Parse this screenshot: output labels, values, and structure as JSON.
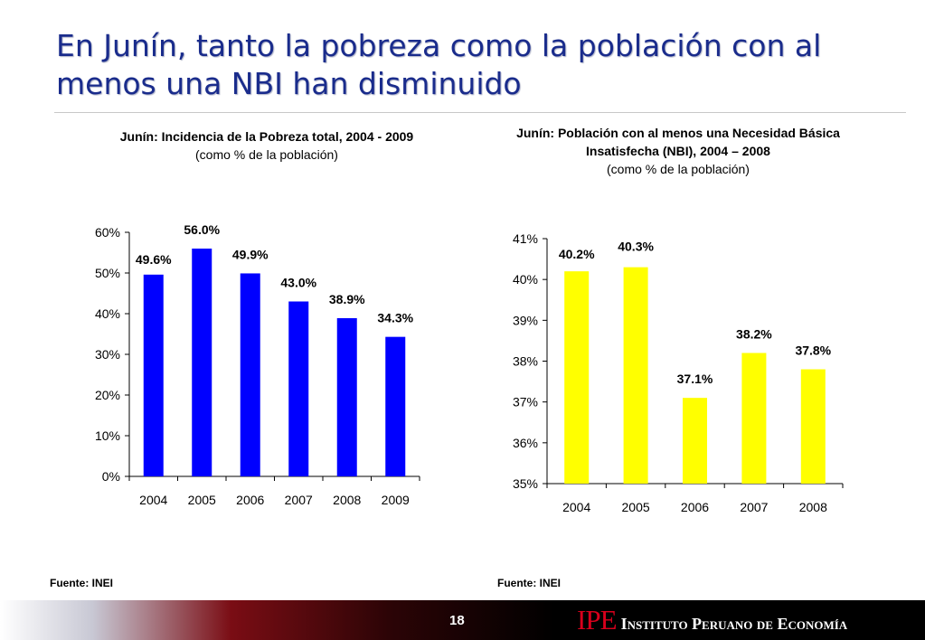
{
  "slide": {
    "title": "En Junín, tanto la pobreza como la población con al menos una NBI han disminuido",
    "page_number": "18",
    "logo_mark": "IPE",
    "logo_name": "Instituto Peruano de Economía"
  },
  "chart_data": [
    {
      "type": "bar",
      "title": "Junín: Incidencia de la Pobreza total, 2004 - 2009",
      "subtitle": "(como % de la población)",
      "categories": [
        "2004",
        "2005",
        "2006",
        "2007",
        "2008",
        "2009"
      ],
      "values": [
        49.6,
        56.0,
        49.9,
        43.0,
        38.9,
        34.3
      ],
      "value_labels": [
        "49.6%",
        "56.0%",
        "49.9%",
        "43.0%",
        "38.9%",
        "34.3%"
      ],
      "ylim": [
        0,
        60
      ],
      "yticks": [
        0,
        10,
        20,
        30,
        40,
        50,
        60
      ],
      "ytick_labels": [
        "0%",
        "10%",
        "20%",
        "30%",
        "40%",
        "50%",
        "60%"
      ],
      "color": "#0000ff",
      "grid": false,
      "legend": "none",
      "source": "Fuente: INEI"
    },
    {
      "type": "bar",
      "title": "Junín: Población con al menos una Necesidad Básica Insatisfecha (NBI), 2004 – 2008",
      "subtitle": "(como % de la población)",
      "categories": [
        "2004",
        "2005",
        "2006",
        "2007",
        "2008"
      ],
      "values": [
        40.2,
        40.3,
        37.1,
        38.2,
        37.8
      ],
      "value_labels": [
        "40.2%",
        "40.3%",
        "37.1%",
        "38.2%",
        "37.8%"
      ],
      "ylim": [
        35,
        41
      ],
      "yticks": [
        35,
        36,
        37,
        38,
        39,
        40,
        41
      ],
      "ytick_labels": [
        "35%",
        "36%",
        "37%",
        "38%",
        "39%",
        "40%",
        "41%"
      ],
      "color": "#ffff00",
      "grid": false,
      "legend": "none",
      "source": "Fuente: INEI"
    }
  ]
}
